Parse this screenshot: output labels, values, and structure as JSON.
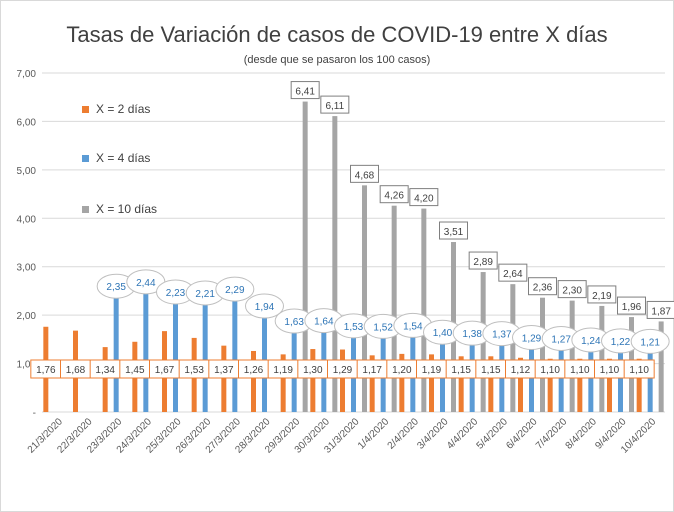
{
  "chart_data": {
    "type": "bar",
    "title": "Tasas de Variación de casos de COVID-19 entre X días",
    "subtitle": "(desde que se pasaron los 100 casos)",
    "xlabel": "",
    "ylabel": "",
    "ylim": [
      0,
      7
    ],
    "yticks": [
      "-",
      "1,00",
      "2,00",
      "3,00",
      "4,00",
      "5,00",
      "6,00",
      "7,00"
    ],
    "grid": true,
    "legend_position": "top-left",
    "categories": [
      "21/3/2020",
      "22/3/2020",
      "23/3/2020",
      "24/3/2020",
      "25/3/2020",
      "26/3/2020",
      "27/3/2020",
      "28/3/2020",
      "29/3/2020",
      "30/3/2020",
      "31/3/2020",
      "1/4/2020",
      "2/4/2020",
      "3/4/2020",
      "4/4/2020",
      "5/4/2020",
      "6/4/2020",
      "7/4/2020",
      "8/4/2020",
      "9/4/2020",
      "10/4/2020"
    ],
    "series": [
      {
        "name": "X = 2 días",
        "color": "#ed7d31",
        "values": [
          1.76,
          1.68,
          1.34,
          1.45,
          1.67,
          1.53,
          1.37,
          1.26,
          1.19,
          1.3,
          1.29,
          1.17,
          1.2,
          1.19,
          1.15,
          1.15,
          1.12,
          1.1,
          1.1,
          1.1,
          1.1
        ],
        "labels": [
          "1,76",
          "1,68",
          "1,34",
          "1,45",
          "1,67",
          "1,53",
          "1,37",
          "1,26",
          "1,19",
          "1,30",
          "1,29",
          "1,17",
          "1,20",
          "1,19",
          "1,15",
          "1,15",
          "1,12",
          "1,10",
          "1,10",
          "1,10",
          "1,10"
        ]
      },
      {
        "name": "X = 4 días",
        "color": "#5b9bd5",
        "values": [
          null,
          null,
          2.35,
          2.44,
          2.23,
          2.21,
          2.29,
          1.94,
          1.63,
          1.64,
          1.53,
          1.52,
          1.54,
          1.4,
          1.38,
          1.37,
          1.29,
          1.27,
          1.24,
          1.22,
          1.21
        ],
        "labels": [
          null,
          null,
          "2,35",
          "2,44",
          "2,23",
          "2,21",
          "2,29",
          "1,94",
          "1,63",
          "1,64",
          "1,53",
          "1,52",
          "1,54",
          "1,40",
          "1,38",
          "1,37",
          "1,29",
          "1,27",
          "1,24",
          "1,22",
          "1,21"
        ]
      },
      {
        "name": "X = 10 días",
        "color": "#a5a5a5",
        "values": [
          null,
          null,
          null,
          null,
          null,
          null,
          null,
          null,
          6.41,
          6.11,
          4.68,
          4.26,
          4.2,
          3.51,
          2.89,
          2.64,
          2.36,
          2.3,
          2.19,
          1.96,
          1.87
        ],
        "labels": [
          null,
          null,
          null,
          null,
          null,
          null,
          null,
          null,
          "6,41",
          "6,11",
          "4,68",
          "4,26",
          "4,20",
          "3,51",
          "2,89",
          "2,64",
          "2,36",
          "2,30",
          "2,19",
          "1,96",
          "1,87"
        ]
      }
    ]
  }
}
